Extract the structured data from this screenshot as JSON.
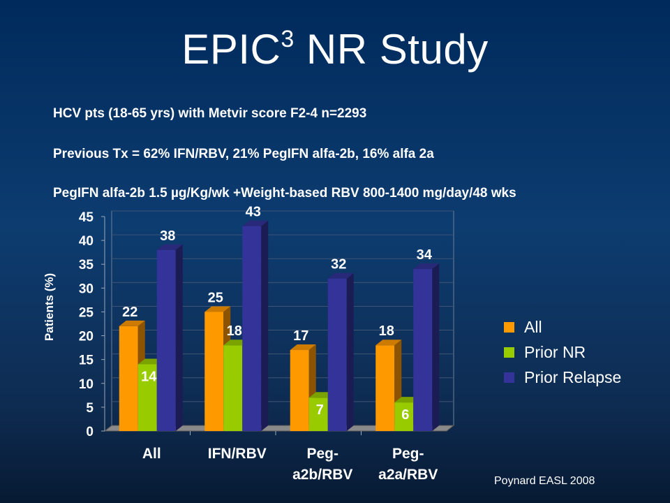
{
  "title_main": "EPIC",
  "title_sup": "3",
  "title_rest": " NR Study",
  "lines": [
    "HCV pts (18-65 yrs) with Metvir score F2-4  n=2293",
    "Previous Tx = 62% IFN/RBV, 21% PegIFN alfa-2b, 16% alfa 2a",
    "PegIFN alfa-2b 1.5 µg/Kg/wk +Weight-based RBV 800-1400 mg/day/48 wks"
  ],
  "footnote": "Poynard EASL 2008",
  "chart_data": {
    "type": "bar",
    "ylabel": "Patients (%)",
    "ylim": [
      0,
      45
    ],
    "yticks": [
      0,
      5,
      10,
      15,
      20,
      25,
      30,
      35,
      40,
      45
    ],
    "categories": [
      [
        "All"
      ],
      [
        "IFN/RBV"
      ],
      [
        "Peg-",
        "a2b/RBV"
      ],
      [
        "Peg-",
        "a2a/RBV"
      ]
    ],
    "series": [
      {
        "name": "All",
        "color": "#ff9900",
        "values": [
          22,
          25,
          17,
          18
        ]
      },
      {
        "name": "Prior NR",
        "color": "#99cc00",
        "values": [
          14,
          18,
          7,
          6
        ]
      },
      {
        "name": "Prior Relapse",
        "color": "#333399",
        "values": [
          38,
          43,
          32,
          34
        ]
      }
    ],
    "legend_position": "right",
    "grid": true
  }
}
